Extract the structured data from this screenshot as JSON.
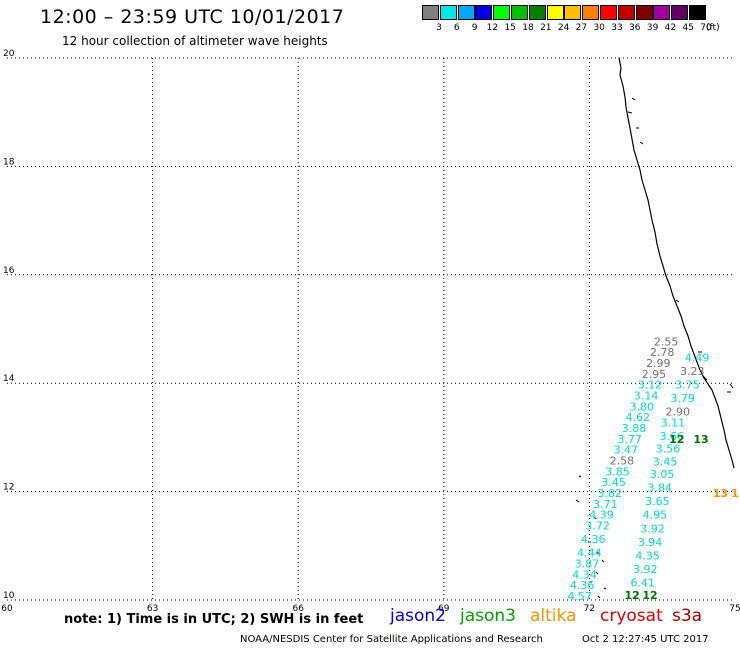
{
  "header": {
    "title": "12:00 – 23:59 UTC 10/01/2017",
    "subtitle": "12 hour collection of altimeter wave heights"
  },
  "legend": {
    "unit": "(ft)",
    "bins": [
      {
        "label": "3",
        "color": "#808080"
      },
      {
        "label": "6",
        "color": "#00e8e8"
      },
      {
        "label": "9",
        "color": "#00a8ff"
      },
      {
        "label": "12",
        "color": "#0000e0"
      },
      {
        "label": "15",
        "color": "#00ff00"
      },
      {
        "label": "18",
        "color": "#00c000"
      },
      {
        "label": "21",
        "color": "#008000"
      },
      {
        "label": "24",
        "color": "#ffff00"
      },
      {
        "label": "27",
        "color": "#ffc000"
      },
      {
        "label": "30",
        "color": "#ff8000"
      },
      {
        "label": "33",
        "color": "#ff0000"
      },
      {
        "label": "36",
        "color": "#c00000"
      },
      {
        "label": "39",
        "color": "#800000"
      },
      {
        "label": "42",
        "color": "#a000a0"
      },
      {
        "label": "45",
        "color": "#600060"
      },
      {
        "label": "70",
        "color": "#000000"
      }
    ]
  },
  "map": {
    "lon_range": [
      60,
      75
    ],
    "lat_range": [
      10,
      20
    ],
    "lon_ticks": [
      "60",
      "63",
      "66",
      "69",
      "72",
      "75"
    ],
    "lat_ticks": [
      "10",
      "12",
      "14",
      "16",
      "18",
      "20"
    ],
    "colors": {
      "gray": "#707070",
      "cyan": "#00d8d8",
      "green": "#007000",
      "orange": "#ff9000",
      "coast": "#000000"
    },
    "observations": [
      {
        "text": "2.55",
        "lon": 73.58,
        "lat": 14.7,
        "color": "gray"
      },
      {
        "text": "2.78",
        "lon": 73.5,
        "lat": 14.5,
        "color": "gray"
      },
      {
        "text": "2.99",
        "lon": 73.42,
        "lat": 14.3,
        "color": "gray"
      },
      {
        "text": "2.95",
        "lon": 73.33,
        "lat": 14.1,
        "color": "gray"
      },
      {
        "text": "3.12",
        "lon": 73.25,
        "lat": 13.9,
        "color": "cyan"
      },
      {
        "text": "3.14",
        "lon": 73.17,
        "lat": 13.7,
        "color": "cyan"
      },
      {
        "text": "3.80",
        "lon": 73.08,
        "lat": 13.5,
        "color": "cyan"
      },
      {
        "text": "4.62",
        "lon": 73.0,
        "lat": 13.3,
        "color": "cyan"
      },
      {
        "text": "3.88",
        "lon": 72.92,
        "lat": 13.1,
        "color": "cyan"
      },
      {
        "text": "3.77",
        "lon": 72.83,
        "lat": 12.9,
        "color": "cyan"
      },
      {
        "text": "3.47",
        "lon": 72.75,
        "lat": 12.7,
        "color": "cyan"
      },
      {
        "text": "2.58",
        "lon": 72.67,
        "lat": 12.5,
        "color": "gray"
      },
      {
        "text": "3.85",
        "lon": 72.58,
        "lat": 12.3,
        "color": "cyan"
      },
      {
        "text": "3.45",
        "lon": 72.5,
        "lat": 12.1,
        "color": "cyan"
      },
      {
        "text": "3.82",
        "lon": 72.42,
        "lat": 11.9,
        "color": "cyan"
      },
      {
        "text": "3.71",
        "lon": 72.33,
        "lat": 11.7,
        "color": "cyan"
      },
      {
        "text": "4.39",
        "lon": 72.25,
        "lat": 11.5,
        "color": "cyan"
      },
      {
        "text": "3.72",
        "lon": 72.17,
        "lat": 11.3,
        "color": "cyan"
      },
      {
        "text": "4.36",
        "lon": 72.08,
        "lat": 11.05,
        "color": "cyan"
      },
      {
        "text": "4.44",
        "lon": 72.0,
        "lat": 10.8,
        "color": "cyan"
      },
      {
        "text": "3.87",
        "lon": 71.95,
        "lat": 10.6,
        "color": "cyan"
      },
      {
        "text": "4.34",
        "lon": 71.9,
        "lat": 10.4,
        "color": "cyan"
      },
      {
        "text": "4.36",
        "lon": 71.85,
        "lat": 10.2,
        "color": "cyan"
      },
      {
        "text": "4.57",
        "lon": 71.8,
        "lat": 10.0,
        "color": "cyan"
      },
      {
        "text": "4.49",
        "lon": 74.22,
        "lat": 14.4,
        "color": "cyan"
      },
      {
        "text": "3.23",
        "lon": 74.12,
        "lat": 14.15,
        "color": "gray"
      },
      {
        "text": "3.75",
        "lon": 74.02,
        "lat": 13.9,
        "color": "cyan"
      },
      {
        "text": "3.79",
        "lon": 73.92,
        "lat": 13.65,
        "color": "cyan"
      },
      {
        "text": "2.90",
        "lon": 73.82,
        "lat": 13.4,
        "color": "gray"
      },
      {
        "text": "3.11",
        "lon": 73.72,
        "lat": 13.2,
        "color": "cyan"
      },
      {
        "text": "3.66",
        "lon": 73.7,
        "lat": 12.95,
        "color": "cyan"
      },
      {
        "text": "3.56",
        "lon": 73.62,
        "lat": 12.72,
        "color": "cyan"
      },
      {
        "text": "3.45",
        "lon": 73.56,
        "lat": 12.48,
        "color": "cyan"
      },
      {
        "text": "3.05",
        "lon": 73.5,
        "lat": 12.25,
        "color": "cyan"
      },
      {
        "text": "3.84",
        "lon": 73.45,
        "lat": 12.0,
        "color": "cyan"
      },
      {
        "text": "3.65",
        "lon": 73.4,
        "lat": 11.75,
        "color": "cyan"
      },
      {
        "text": "4.95",
        "lon": 73.35,
        "lat": 11.5,
        "color": "cyan"
      },
      {
        "text": "3.92",
        "lon": 73.3,
        "lat": 11.25,
        "color": "cyan"
      },
      {
        "text": "3.94",
        "lon": 73.25,
        "lat": 11.0,
        "color": "cyan"
      },
      {
        "text": "4.35",
        "lon": 73.2,
        "lat": 10.75,
        "color": "cyan"
      },
      {
        "text": "3.92",
        "lon": 73.15,
        "lat": 10.5,
        "color": "cyan"
      },
      {
        "text": "6.41",
        "lon": 73.1,
        "lat": 10.25,
        "color": "cyan"
      },
      {
        "text": "12",
        "lon": 73.8,
        "lat": 12.9,
        "color": "green"
      },
      {
        "text": "13",
        "lon": 74.3,
        "lat": 12.9,
        "color": "green"
      },
      {
        "text": "12",
        "lon": 72.88,
        "lat": 10.02,
        "color": "green"
      },
      {
        "text": "12",
        "lon": 73.25,
        "lat": 10.02,
        "color": "green"
      },
      {
        "text": "13",
        "lon": 74.7,
        "lat": 11.9,
        "color": "orange"
      },
      {
        "text": "1",
        "lon": 75.0,
        "lat": 11.9,
        "color": "orange"
      }
    ]
  },
  "footer": {
    "note": "note: 1) Time is in UTC; 2) SWH is in feet",
    "satellites": [
      {
        "label": "jason2",
        "color": "#0000d0"
      },
      {
        "label": "jason3",
        "color": "#00a000"
      },
      {
        "label": "altika",
        "color": "#ff9000"
      },
      {
        "label": "cryosat",
        "color": "#e00000"
      },
      {
        "label": "s3a",
        "color": "#a00000"
      }
    ],
    "credit": "NOAA/NESDIS Center for Satellite Applications and Research",
    "timestamp": "Oct  2 12:27:45 UTC 2017"
  }
}
